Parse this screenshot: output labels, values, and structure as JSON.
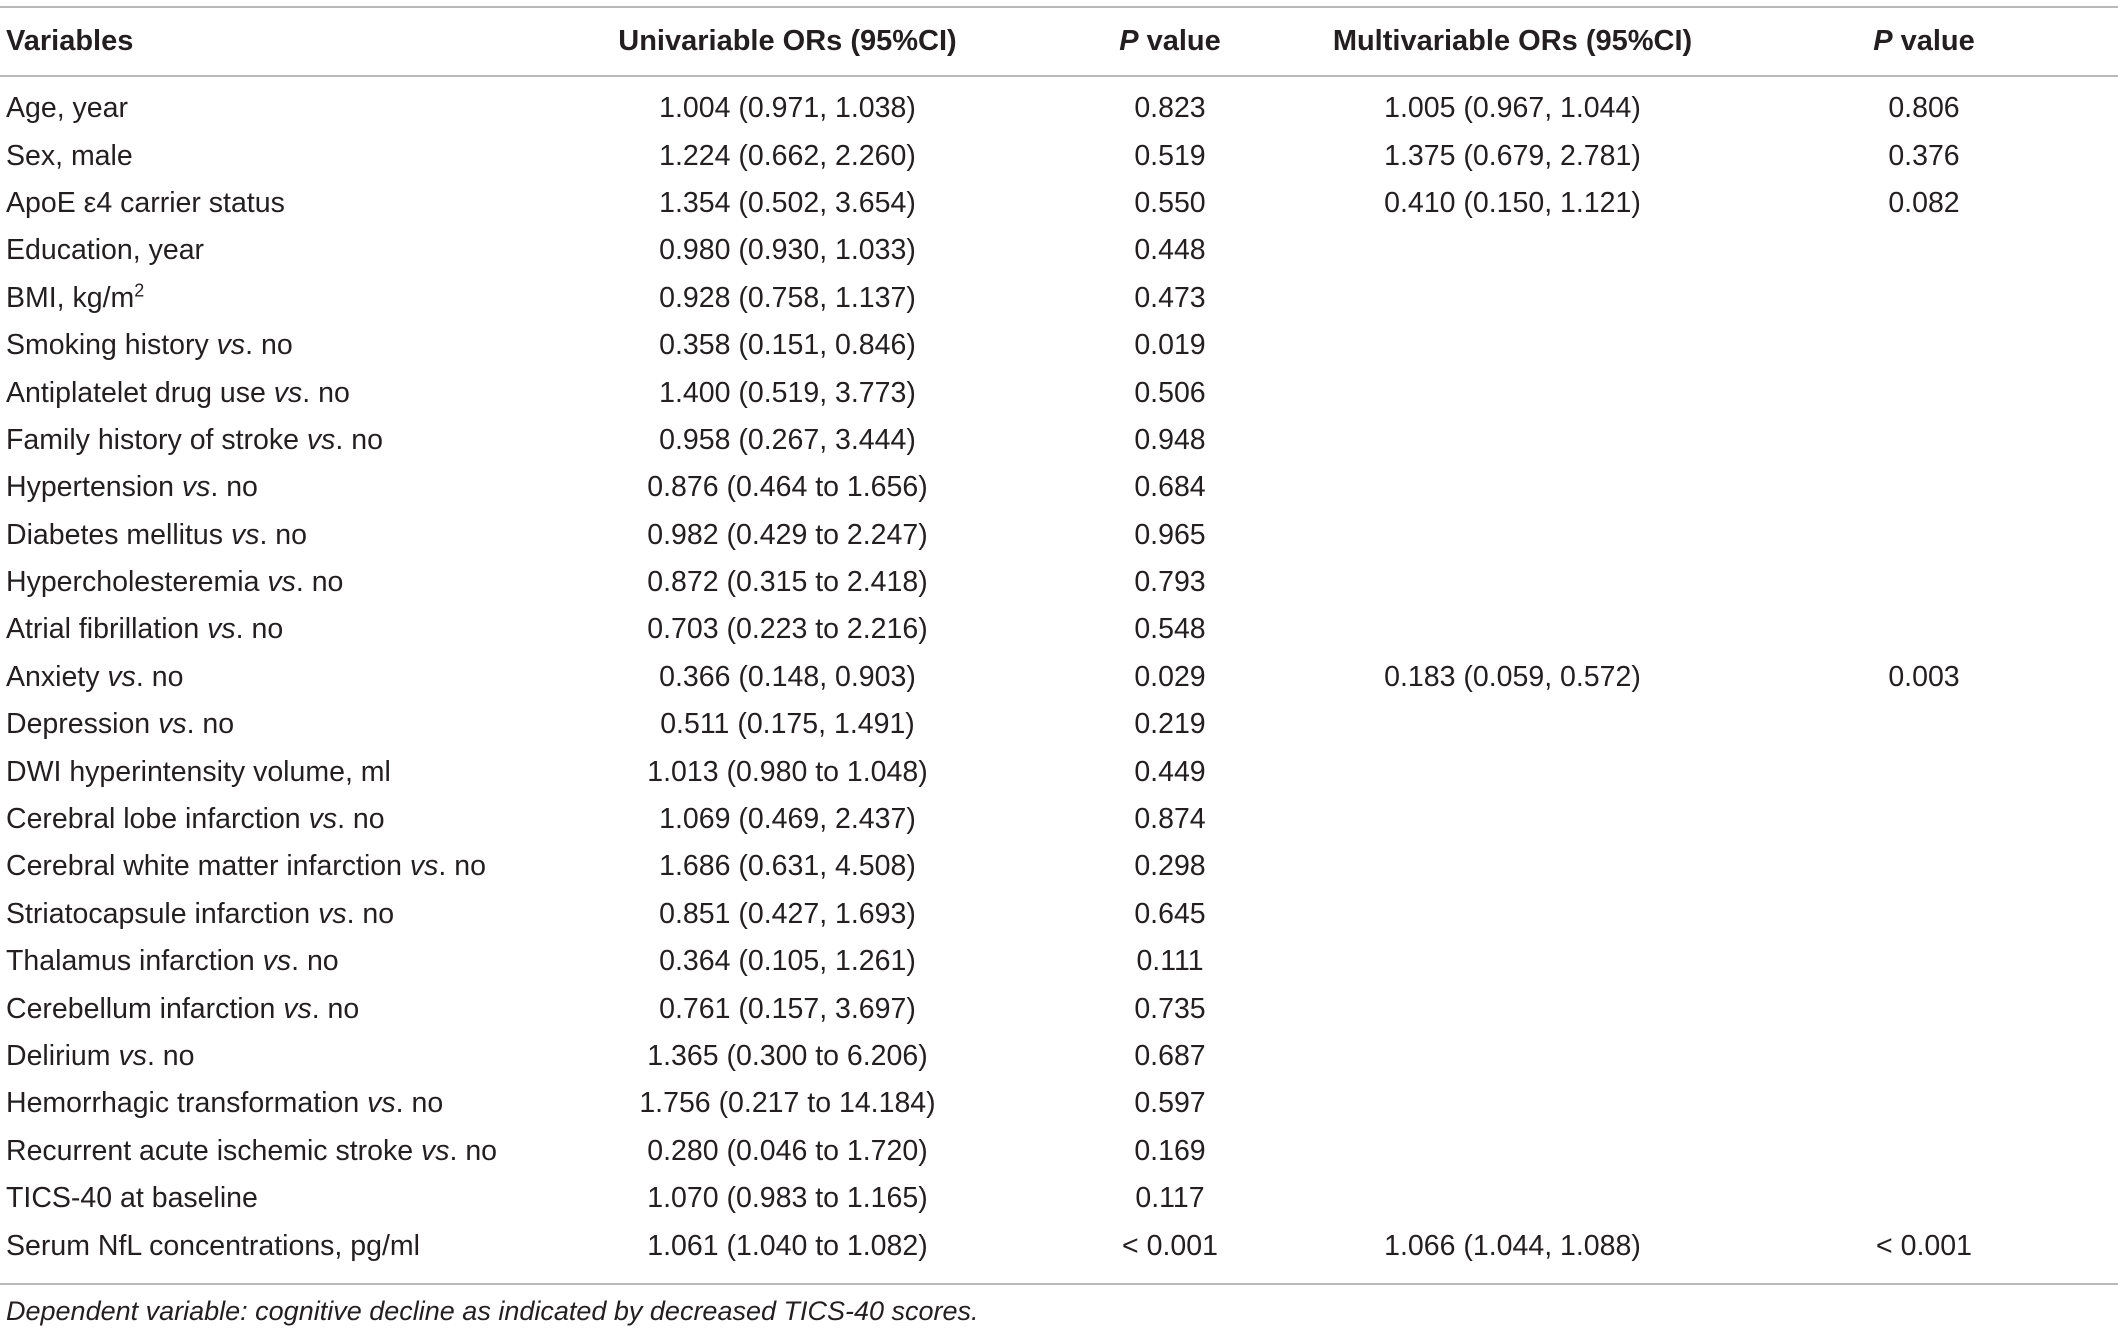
{
  "headers": {
    "variables": "Variables",
    "uni_or": "Univariable ORs (95%CI)",
    "p_letter": "P",
    "p_word": " value",
    "multi_or": "Multivariable ORs (95%CI)"
  },
  "vs": "vs",
  "rows": [
    {
      "label": "Age, year",
      "uni": "1.004 (0.971, 1.038)",
      "uni_p": "0.823",
      "multi": "1.005 (0.967, 1.044)",
      "multi_p": "0.806"
    },
    {
      "label": "Sex, male",
      "uni": "1.224 (0.662, 2.260)",
      "uni_p": "0.519",
      "multi": "1.375 (0.679, 2.781)",
      "multi_p": "0.376"
    },
    {
      "label": "ApoE ε4 carrier status",
      "uni": "1.354 (0.502, 3.654)",
      "uni_p": "0.550",
      "multi": "0.410 (0.150, 1.121)",
      "multi_p": "0.082"
    },
    {
      "label": "Education, year",
      "uni": "0.980 (0.930, 1.033)",
      "uni_p": "0.448",
      "multi": "",
      "multi_p": ""
    },
    {
      "label": "BMI, kg/m",
      "label_sup": "2",
      "uni": "0.928 (0.758, 1.137)",
      "uni_p": "0.473",
      "multi": "",
      "multi_p": ""
    },
    {
      "label": "Smoking history",
      "vs_suffix": ". no",
      "uni": "0.358 (0.151, 0.846)",
      "uni_p": "0.019",
      "multi": "",
      "multi_p": ""
    },
    {
      "label": "Antiplatelet drug use",
      "vs_suffix": ". no",
      "uni": "1.400 (0.519, 3.773)",
      "uni_p": "0.506",
      "multi": "",
      "multi_p": ""
    },
    {
      "label": "Family history of stroke",
      "vs_suffix": ". no",
      "uni": "0.958 (0.267, 3.444)",
      "uni_p": "0.948",
      "multi": "",
      "multi_p": ""
    },
    {
      "label": "Hypertension",
      "vs_suffix": ". no",
      "uni": "0.876 (0.464 to 1.656)",
      "uni_p": "0.684",
      "multi": "",
      "multi_p": ""
    },
    {
      "label": "Diabetes mellitus",
      "vs_suffix": ". no",
      "uni": "0.982 (0.429 to 2.247)",
      "uni_p": "0.965",
      "multi": "",
      "multi_p": ""
    },
    {
      "label": "Hypercholesteremia",
      "vs_suffix": ". no",
      "uni": "0.872 (0.315 to 2.418)",
      "uni_p": "0.793",
      "multi": "",
      "multi_p": ""
    },
    {
      "label": "Atrial fibrillation",
      "vs_suffix": ". no",
      "uni": "0.703 (0.223 to 2.216)",
      "uni_p": "0.548",
      "multi": "",
      "multi_p": ""
    },
    {
      "label": "Anxiety",
      "vs_suffix": ". no",
      "uni": "0.366 (0.148, 0.903)",
      "uni_p": "0.029",
      "multi": "0.183 (0.059, 0.572)",
      "multi_p": "0.003"
    },
    {
      "label": "Depression",
      "vs_suffix": ". no",
      "uni": "0.511 (0.175, 1.491)",
      "uni_p": "0.219",
      "multi": "",
      "multi_p": ""
    },
    {
      "label": "DWI hyperintensity volume, ml",
      "uni": "1.013 (0.980 to 1.048)",
      "uni_p": "0.449",
      "multi": "",
      "multi_p": ""
    },
    {
      "label": "Cerebral lobe infarction",
      "vs_suffix": ". no",
      "uni": "1.069 (0.469, 2.437)",
      "uni_p": "0.874",
      "multi": "",
      "multi_p": ""
    },
    {
      "label": "Cerebral white matter infarction",
      "vs_suffix": ". no",
      "uni": "1.686 (0.631, 4.508)",
      "uni_p": "0.298",
      "multi": "",
      "multi_p": ""
    },
    {
      "label": "Striatocapsule infarction",
      "vs_suffix": ". no",
      "uni": "0.851 (0.427, 1.693)",
      "uni_p": "0.645",
      "multi": "",
      "multi_p": ""
    },
    {
      "label": "Thalamus infarction",
      "vs_suffix": ". no",
      "uni": "0.364 (0.105, 1.261)",
      "uni_p": "0.111",
      "multi": "",
      "multi_p": ""
    },
    {
      "label": "Cerebellum infarction",
      "vs_suffix": ". no",
      "uni": "0.761 (0.157, 3.697)",
      "uni_p": "0.735",
      "multi": "",
      "multi_p": ""
    },
    {
      "label": "Delirium",
      "vs_suffix": ". no",
      "uni": "1.365 (0.300 to 6.206)",
      "uni_p": "0.687",
      "multi": "",
      "multi_p": ""
    },
    {
      "label": "Hemorrhagic transformation",
      "vs_suffix": ". no",
      "uni": "1.756 (0.217 to 14.184)",
      "uni_p": "0.597",
      "multi": "",
      "multi_p": ""
    },
    {
      "label": "Recurrent acute ischemic stroke",
      "vs_suffix": ". no",
      "uni": "0.280 (0.046 to 1.720)",
      "uni_p": "0.169",
      "multi": "",
      "multi_p": ""
    },
    {
      "label": "TICS-40 at baseline",
      "uni": "1.070 (0.983 to 1.165)",
      "uni_p": "0.117",
      "multi": "",
      "multi_p": ""
    },
    {
      "label": "Serum NfL concentrations, pg/ml",
      "uni": "1.061 (1.040 to 1.082)",
      "uni_p": "< 0.001",
      "multi": "1.066 (1.044, 1.088)",
      "multi_p": "< 0.001"
    }
  ],
  "footnote": "Dependent variable: cognitive decline as indicated by decreased TICS-40 scores."
}
